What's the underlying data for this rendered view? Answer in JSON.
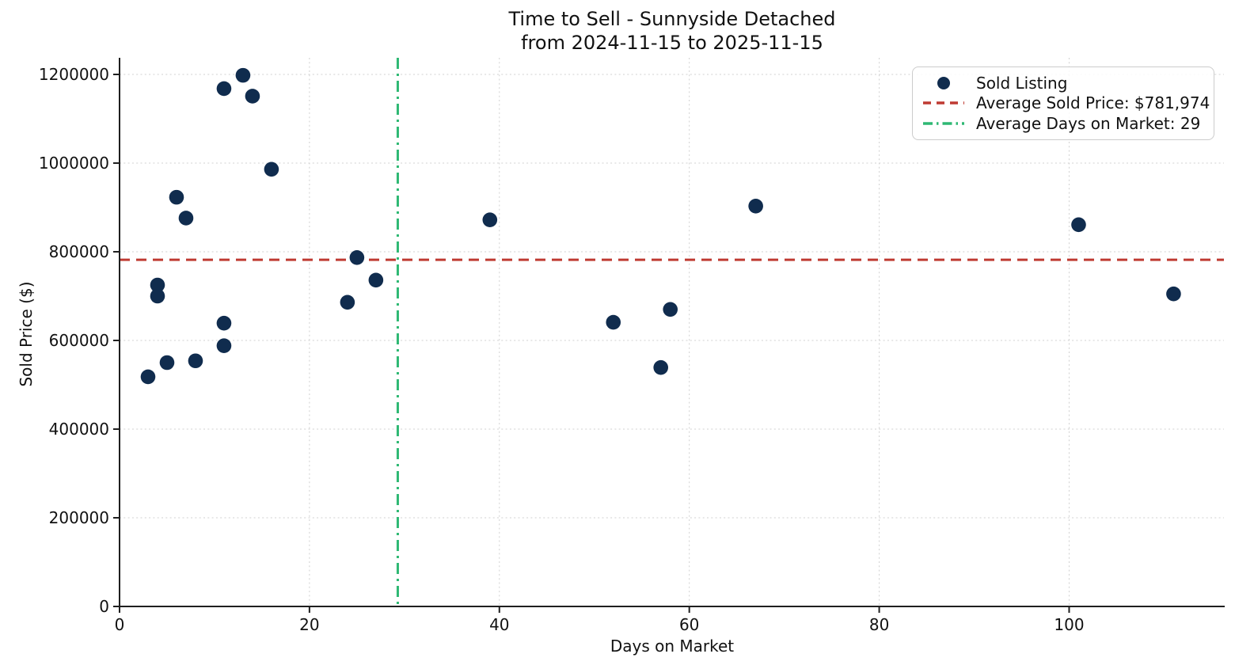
{
  "chart_data": {
    "type": "scatter",
    "title": "Time to Sell - Sunnyside Detached",
    "subtitle": "from 2024-11-15 to 2025-11-15",
    "xlabel": "Days on Market",
    "ylabel": "Sold Price ($)",
    "xlim": [
      0,
      116.3
    ],
    "ylim": [
      0,
      1237500
    ],
    "xticks": [
      0,
      20,
      40,
      60,
      80,
      100
    ],
    "yticks": [
      0,
      200000,
      400000,
      600000,
      800000,
      1000000,
      1200000
    ],
    "grid": true,
    "legend_position": "upper right",
    "series": [
      {
        "name": "Sold Listing",
        "type": "scatter",
        "color": "#102c4e",
        "points": [
          [
            3,
            518000
          ],
          [
            4,
            725000
          ],
          [
            4,
            700000
          ],
          [
            5,
            550000
          ],
          [
            6,
            923000
          ],
          [
            7,
            876000
          ],
          [
            8,
            554000
          ],
          [
            11,
            1168000
          ],
          [
            11,
            639000
          ],
          [
            11,
            588000
          ],
          [
            13,
            1198000
          ],
          [
            14,
            1151000
          ],
          [
            16,
            986000
          ],
          [
            24,
            686000
          ],
          [
            25,
            787000
          ],
          [
            27,
            736000
          ],
          [
            39,
            872000
          ],
          [
            52,
            641000
          ],
          [
            57,
            539000
          ],
          [
            58,
            670000
          ],
          [
            67,
            903000
          ],
          [
            101,
            861000
          ],
          [
            111,
            705000
          ]
        ]
      },
      {
        "name": "Average Sold Price: $781,974",
        "type": "hline",
        "value": 781974,
        "color": "#bf3a32",
        "style": "dashed"
      },
      {
        "name": "Average Days on Market: 29",
        "type": "vline",
        "value": 29.3,
        "color": "#2eb873",
        "style": "dashdot"
      }
    ],
    "colors": {
      "grid": "#cccccc",
      "spine": "#1f1f1f",
      "text": "#111111"
    }
  }
}
